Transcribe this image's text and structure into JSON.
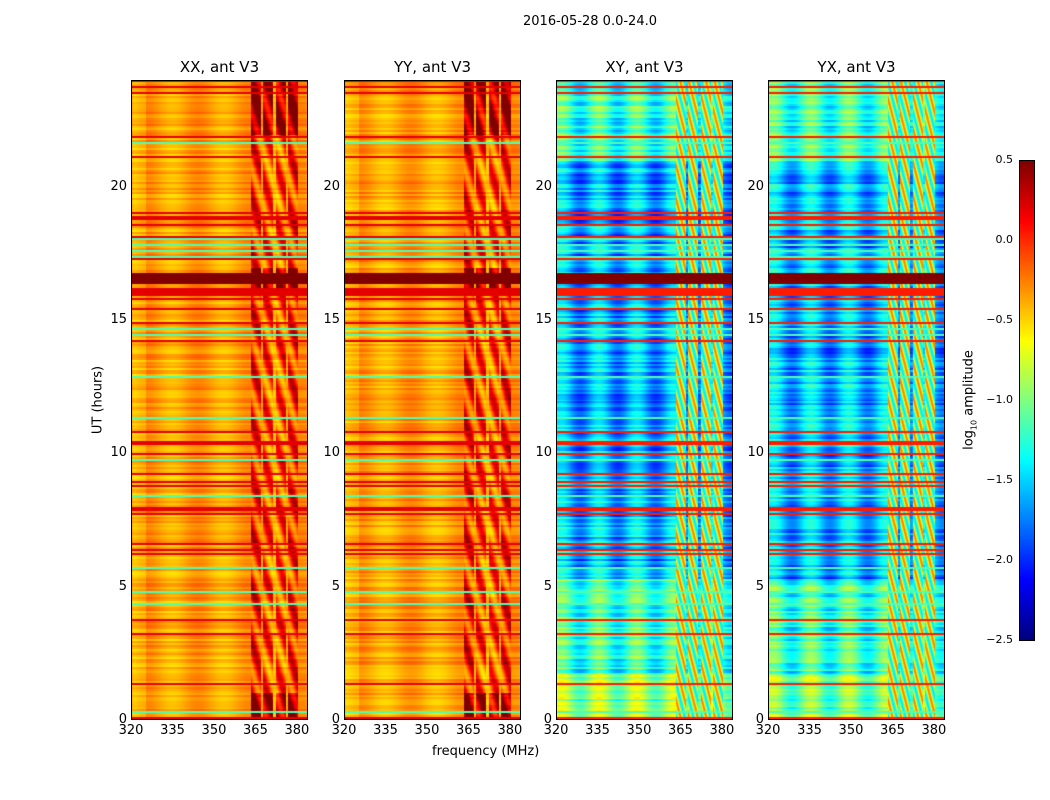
{
  "chart_data": {
    "type": "heatmap",
    "title": "2016-05-28 0.0-24.0",
    "xlabel": "frequency (MHz)",
    "ylabel": "UT (hours)",
    "xlim": [
      320,
      384
    ],
    "ylim": [
      0,
      24
    ],
    "xticks": [
      "320",
      "335",
      "350",
      "365",
      "380"
    ],
    "xtick_values": [
      320,
      335,
      350,
      365,
      380
    ],
    "yticks": [
      "0",
      "5",
      "10",
      "15",
      "20"
    ],
    "ytick_values": [
      0,
      5,
      10,
      15,
      20
    ],
    "panels": [
      {
        "title": "XX, ant V3",
        "kind": "parallel"
      },
      {
        "title": "YY, ant V3",
        "kind": "parallel"
      },
      {
        "title": "XY, ant V3",
        "kind": "cross"
      },
      {
        "title": "YX, ant V3",
        "kind": "cross"
      }
    ],
    "colorbar": {
      "label": "log10 amplitude",
      "label_main": "log",
      "label_sub": "10",
      "label_rest": " amplitude",
      "range": [
        -2.5,
        0.5
      ],
      "colormap": "jet",
      "ticks": [
        "0.5",
        "0.0",
        "−0.5",
        "−1.0",
        "−1.5",
        "−2.0",
        "−2.5"
      ],
      "tick_values": [
        0.5,
        0,
        -0.5,
        -1,
        -1.5,
        -2,
        -2.5
      ]
    }
  }
}
